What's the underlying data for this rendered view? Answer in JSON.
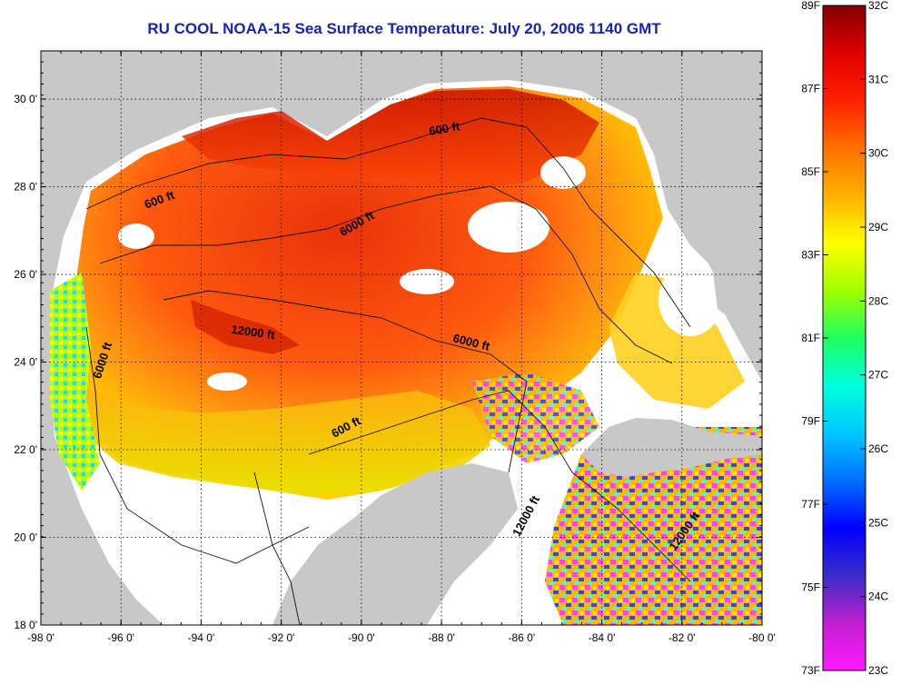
{
  "title": "RU COOL  NOAA-15  Sea Surface Temperature:  July 20, 2006 1140 GMT",
  "map": {
    "lon_ticks": [
      "-98 0'",
      "-96 0'",
      "-94 0'",
      "-92 0'",
      "-90 0'",
      "-88 0'",
      "-86 0'",
      "-84 0'",
      "-82 0'",
      "-80 0'"
    ],
    "lat_ticks": [
      "30 0'",
      "28 0'",
      "26 0'",
      "24 0'",
      "22 0'",
      "20 0'",
      "18 0'"
    ],
    "contour_labels": [
      {
        "text": "600 ft",
        "rotate": -20
      },
      {
        "text": "600 ft",
        "rotate": -10
      },
      {
        "text": "6000 ft",
        "rotate": -30
      },
      {
        "text": "12000 ft",
        "rotate": 8
      },
      {
        "text": "6000 ft",
        "rotate": 14
      },
      {
        "text": "6000 ft",
        "rotate": -72
      },
      {
        "text": "600 ft",
        "rotate": -28
      },
      {
        "text": "12000 ft",
        "rotate": -62
      },
      {
        "text": "12000 ft",
        "rotate": -55
      }
    ],
    "colors": {
      "land": "#c8c8c8",
      "nodata": "#ffffff",
      "frame": "#000000"
    }
  },
  "colorbar": {
    "fahrenheit_labels": [
      "89F",
      "87F",
      "85F",
      "83F",
      "81F",
      "79F",
      "77F",
      "75F",
      "73F"
    ],
    "celsius_labels": [
      "32C",
      "31C",
      "30C",
      "29C",
      "28C",
      "27C",
      "26C",
      "25C",
      "24C",
      "23C"
    ],
    "range_c": [
      23,
      32
    ],
    "range_f": [
      73,
      89
    ],
    "palette": [
      "#ff1aff",
      "#c020d0",
      "#3a2cc8",
      "#0000ff",
      "#0070ff",
      "#00c8ff",
      "#00ffdc",
      "#20ff60",
      "#a0ff00",
      "#ffff00",
      "#ffb000",
      "#ff7000",
      "#ff2000",
      "#e00000",
      "#800000"
    ]
  }
}
